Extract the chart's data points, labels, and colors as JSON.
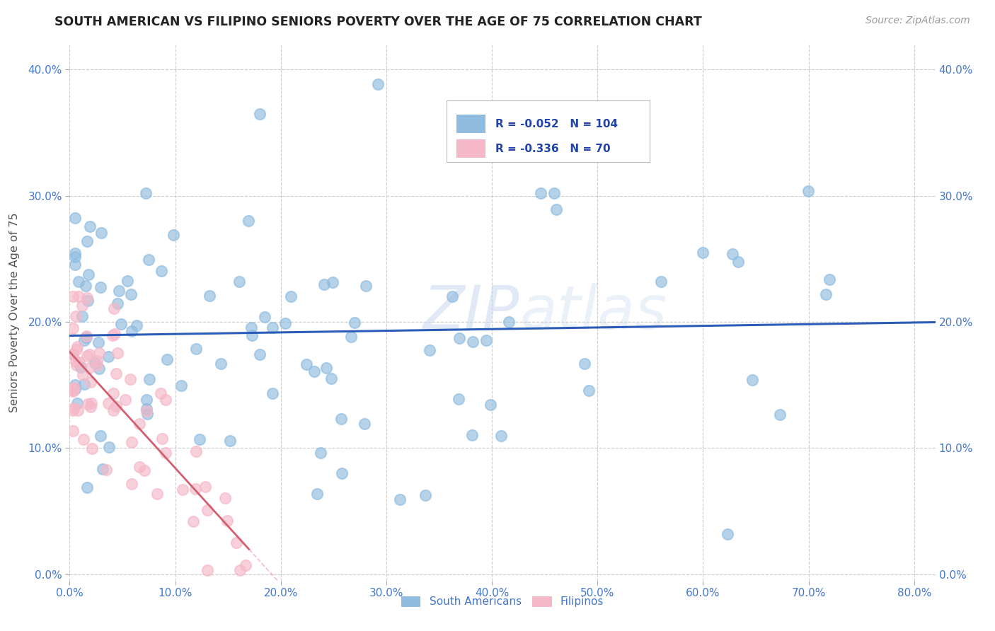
{
  "title": "SOUTH AMERICAN VS FILIPINO SENIORS POVERTY OVER THE AGE OF 75 CORRELATION CHART",
  "source": "Source: ZipAtlas.com",
  "ylabel_text": "Seniors Poverty Over the Age of 75",
  "xlim": [
    0.0,
    0.82
  ],
  "ylim": [
    -0.005,
    0.42
  ],
  "xticks": [
    0.0,
    0.1,
    0.2,
    0.3,
    0.4,
    0.5,
    0.6,
    0.7,
    0.8
  ],
  "yticks": [
    0.0,
    0.1,
    0.2,
    0.3,
    0.4
  ],
  "background_color": "#ffffff",
  "grid_color": "#cccccc",
  "blue_dot_color": "#90bce0",
  "pink_dot_color": "#f5b8c8",
  "blue_line_color": "#2a5cb8",
  "pink_solid_color": "#d06070",
  "pink_dash_color": "#f0a0b8",
  "tick_color": "#4477cc",
  "legend_blue_R": "-0.052",
  "legend_blue_N": "104",
  "legend_pink_R": "-0.336",
  "legend_pink_N": "70",
  "watermark_text": "ZIPatlas",
  "sa_seed": 42,
  "fil_seed": 99
}
